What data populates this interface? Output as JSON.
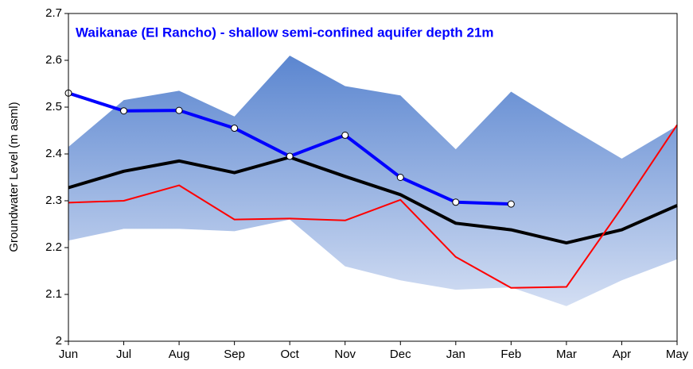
{
  "chart_data": {
    "type": "line",
    "title": "Waikanae (El Rancho) - shallow semi-confined aquifer depth 21m",
    "y_label": "Groundwater Level (m asml)",
    "categories": [
      "Jun",
      "Jul",
      "Aug",
      "Sep",
      "Oct",
      "Nov",
      "Dec",
      "Jan",
      "Feb",
      "Mar",
      "Apr",
      "May"
    ],
    "band": {
      "upper": [
        2.415,
        2.515,
        2.535,
        2.48,
        2.61,
        2.545,
        2.525,
        2.41,
        2.533,
        2.46,
        2.39,
        2.46
      ],
      "lower": [
        2.215,
        2.24,
        2.24,
        2.235,
        2.26,
        2.16,
        2.13,
        2.11,
        2.115,
        2.075,
        2.13,
        2.175
      ],
      "color_top": "#5b86d0",
      "color_bottom": "#d3def3"
    },
    "series": [
      {
        "color": "#000000",
        "width": 4,
        "values": [
          2.328,
          2.363,
          2.385,
          2.36,
          2.393,
          2.352,
          2.313,
          2.252,
          2.238,
          2.21,
          2.238,
          2.29
        ]
      },
      {
        "color": "#ff0000",
        "width": 2,
        "values": [
          2.296,
          2.3,
          2.333,
          2.26,
          2.262,
          2.258,
          2.302,
          2.18,
          2.114,
          2.116,
          2.285,
          2.462
        ]
      },
      {
        "color": "#0000ff",
        "width": 4,
        "markers": true,
        "values": [
          2.53,
          2.492,
          2.493,
          2.455,
          2.395,
          2.44,
          2.35,
          2.297,
          2.293,
          null,
          null,
          null
        ]
      }
    ],
    "ylim": [
      2,
      2.7
    ],
    "yticks": [
      2,
      2.1,
      2.2,
      2.3,
      2.4,
      2.5,
      2.6,
      2.7
    ],
    "grid": false
  }
}
